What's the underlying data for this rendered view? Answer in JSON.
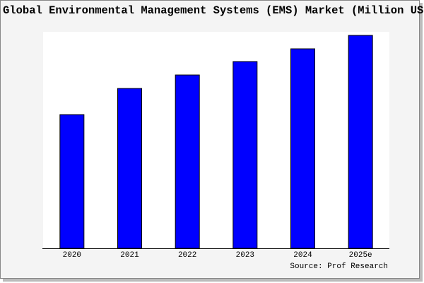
{
  "chart_data": {
    "type": "bar",
    "title": "Global Environmental Management Systems (EMS) Market (Million USD)",
    "source": "Source: Prof Research",
    "categories": [
      "2020",
      "2021",
      "2022",
      "2023",
      "2024",
      "2025e"
    ],
    "values": [
      189,
      226,
      245,
      264,
      282,
      301
    ],
    "color": "#0000ff",
    "ylim": [
      0,
      303
    ]
  }
}
